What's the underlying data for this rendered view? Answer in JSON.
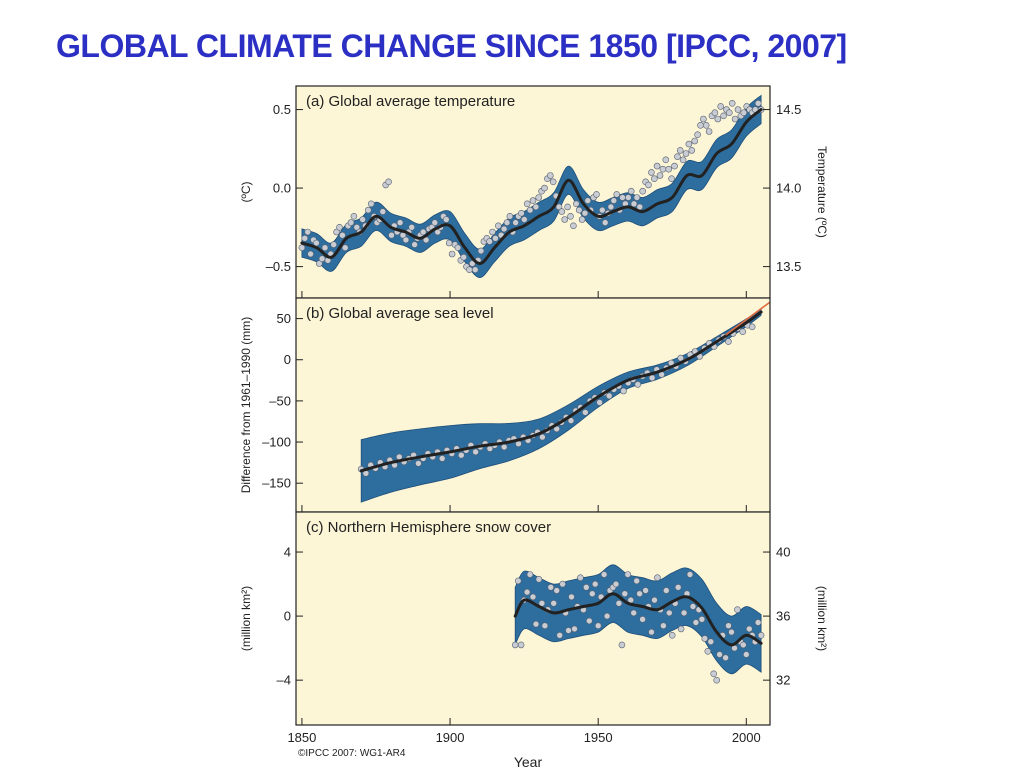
{
  "slide": {
    "title": "GLOBAL CLIMATE CHANGE SINCE 1850 [IPCC, 2007]"
  },
  "figure": {
    "credit": "©IPCC 2007: WG1-AR4",
    "xlabel": "Year",
    "xlim": [
      1848,
      2008
    ],
    "xticks": [
      1850,
      1900,
      1950,
      2000
    ],
    "colors": {
      "panel_bg": "#fcf5d6",
      "band": "#2e6e9e",
      "band_edge": "#1d4e7a",
      "line": "#222222",
      "point": "#c9ccd2",
      "point_edge": "#556070",
      "red_line": "#e06a40"
    }
  },
  "chart_data": [
    {
      "type": "line",
      "title": "(a) Global average temperature",
      "ylabel": "(ºC)",
      "ylim": [
        -0.7,
        0.65
      ],
      "yticks": [
        -0.5,
        0.0,
        0.5
      ],
      "ytick_labels": [
        "–0.5",
        "0.0",
        "0.5"
      ],
      "right_axis": {
        "label": "Temperature (ºC)",
        "ticks": [
          13.5,
          14.0,
          14.5
        ],
        "tick_labels": [
          "13.5",
          "14.0",
          "14.5"
        ],
        "offset": 14.0
      },
      "smooth": {
        "x": [
          1850,
          1855,
          1860,
          1865,
          1870,
          1875,
          1880,
          1885,
          1890,
          1895,
          1900,
          1905,
          1910,
          1915,
          1920,
          1925,
          1930,
          1935,
          1940,
          1945,
          1950,
          1955,
          1960,
          1965,
          1970,
          1975,
          1980,
          1985,
          1990,
          1995,
          2000,
          2005
        ],
        "y": [
          -0.35,
          -0.38,
          -0.44,
          -0.32,
          -0.28,
          -0.18,
          -0.25,
          -0.28,
          -0.32,
          -0.26,
          -0.24,
          -0.38,
          -0.48,
          -0.38,
          -0.28,
          -0.24,
          -0.18,
          -0.12,
          0.05,
          -0.1,
          -0.18,
          -0.15,
          -0.12,
          -0.15,
          -0.1,
          -0.06,
          0.08,
          0.08,
          0.22,
          0.28,
          0.42,
          0.5
        ]
      },
      "band_halfwidth": 0.09,
      "points": {
        "x_start": 1850,
        "x_end": 2005,
        "y": [
          -0.38,
          -0.32,
          -0.28,
          -0.42,
          -0.33,
          -0.35,
          -0.48,
          -0.45,
          -0.38,
          -0.46,
          -0.42,
          -0.36,
          -0.28,
          -0.25,
          -0.3,
          -0.38,
          -0.24,
          -0.22,
          -0.18,
          -0.25,
          -0.28,
          -0.2,
          -0.24,
          -0.14,
          -0.1,
          -0.18,
          -0.22,
          -0.2,
          -0.15,
          0.02,
          0.04,
          -0.3,
          -0.24,
          -0.28,
          -0.22,
          -0.3,
          -0.33,
          -0.28,
          -0.25,
          -0.36,
          -0.32,
          -0.3,
          -0.28,
          -0.33,
          -0.26,
          -0.25,
          -0.22,
          -0.28,
          -0.25,
          -0.18,
          -0.2,
          -0.35,
          -0.42,
          -0.36,
          -0.38,
          -0.46,
          -0.44,
          -0.5,
          -0.52,
          -0.48,
          -0.52,
          -0.46,
          -0.4,
          -0.34,
          -0.32,
          -0.34,
          -0.28,
          -0.32,
          -0.24,
          -0.3,
          -0.26,
          -0.22,
          -0.18,
          -0.28,
          -0.22,
          -0.18,
          -0.16,
          -0.2,
          -0.1,
          -0.14,
          -0.08,
          -0.12,
          -0.06,
          -0.02,
          0.0,
          0.06,
          0.08,
          0.04,
          -0.05,
          -0.12,
          -0.15,
          -0.2,
          -0.12,
          -0.18,
          -0.24,
          -0.1,
          -0.14,
          -0.2,
          -0.16,
          -0.08,
          -0.14,
          -0.06,
          -0.04,
          -0.18,
          -0.14,
          -0.22,
          -0.16,
          -0.12,
          -0.08,
          -0.04,
          -0.14,
          -0.06,
          -0.1,
          -0.06,
          -0.02,
          -0.1,
          -0.06,
          -0.12,
          -0.02,
          0.04,
          0.02,
          0.1,
          0.06,
          0.14,
          0.08,
          0.12,
          0.18,
          0.12,
          0.06,
          0.14,
          0.2,
          0.24,
          0.18,
          0.22,
          0.28,
          0.24,
          0.3,
          0.34,
          0.4,
          0.44,
          0.4,
          0.36,
          0.46,
          0.48,
          0.44,
          0.52,
          0.46,
          0.5,
          0.48,
          0.54,
          0.44,
          0.5,
          0.46,
          0.48,
          0.52,
          0.5,
          0.48,
          0.5,
          0.54,
          0.5
        ]
      }
    },
    {
      "type": "line",
      "title": "(b) Global average sea level",
      "ylabel": "Difference from 1961–1990 (mm)",
      "ylim": [
        -185,
        75
      ],
      "yticks": [
        -150,
        -100,
        -50,
        0,
        50
      ],
      "ytick_labels": [
        "–150",
        "–100",
        "–50",
        "0",
        "50"
      ],
      "smooth": {
        "x": [
          1870,
          1880,
          1890,
          1900,
          1910,
          1920,
          1930,
          1940,
          1950,
          1960,
          1970,
          1980,
          1990,
          2000,
          2005
        ],
        "y": [
          -135,
          -125,
          -118,
          -112,
          -105,
          -100,
          -90,
          -70,
          -45,
          -25,
          -15,
          0,
          22,
          45,
          58
        ]
      },
      "band_halfwidth": {
        "x": [
          1870,
          1900,
          1930,
          1960,
          1990,
          2005
        ],
        "y": [
          38,
          32,
          18,
          10,
          6,
          4
        ]
      },
      "satellite": {
        "x": [
          1993,
          2008
        ],
        "y": [
          30,
          70
        ]
      },
      "points": {
        "x_start": 1870,
        "x_end": 2002,
        "y": [
          -133,
          -138,
          -128,
          -132,
          -125,
          -130,
          -122,
          -128,
          -118,
          -124,
          -120,
          -116,
          -126,
          -120,
          -114,
          -118,
          -112,
          -120,
          -110,
          -114,
          -108,
          -116,
          -110,
          -104,
          -112,
          -106,
          -102,
          -108,
          -104,
          -100,
          -106,
          -98,
          -96,
          -102,
          -94,
          -98,
          -92,
          -88,
          -94,
          -86,
          -80,
          -84,
          -76,
          -70,
          -74,
          -62,
          -58,
          -64,
          -50,
          -46,
          -52,
          -40,
          -44,
          -36,
          -32,
          -38,
          -28,
          -24,
          -30,
          -20,
          -16,
          -22,
          -12,
          -18,
          -10,
          -4,
          -8,
          2,
          -2,
          6,
          10,
          4,
          14,
          20,
          16,
          24,
          28,
          22,
          32,
          38,
          34,
          42,
          40
        ]
      }
    },
    {
      "type": "line",
      "title": "(c) Northern Hemisphere snow cover",
      "ylabel": "(million km²)",
      "ylim": [
        -6.8,
        6.5
      ],
      "yticks": [
        -4,
        0,
        4
      ],
      "ytick_labels": [
        "–4",
        "0",
        "4"
      ],
      "right_axis": {
        "label": "(million km²)",
        "ticks": [
          32,
          36,
          40
        ],
        "tick_labels": [
          "32",
          "36",
          "40"
        ],
        "offset": 36
      },
      "smooth": {
        "x": [
          1922,
          1925,
          1930,
          1935,
          1940,
          1945,
          1950,
          1955,
          1960,
          1965,
          1970,
          1975,
          1980,
          1985,
          1990,
          1995,
          2000,
          2005
        ],
        "y": [
          0.0,
          1.0,
          0.6,
          0.2,
          0.4,
          0.6,
          0.8,
          1.4,
          0.8,
          0.6,
          0.4,
          0.9,
          1.2,
          0.5,
          -1.0,
          -1.8,
          -1.2,
          -1.7
        ]
      },
      "band_halfwidth": 1.8,
      "points": {
        "x_start": 1922,
        "x_end": 2005,
        "y": [
          -1.8,
          2.2,
          -1.8,
          1.0,
          1.5,
          2.6,
          1.2,
          -0.5,
          2.3,
          0.8,
          -0.6,
          0.4,
          1.8,
          0.8,
          1.6,
          -1.2,
          2.0,
          0.2,
          -0.9,
          1.2,
          -0.8,
          0.6,
          2.4,
          0.4,
          1.8,
          -0.3,
          1.4,
          2.0,
          -0.6,
          1.2,
          2.6,
          0.0,
          1.6,
          1.8,
          2.0,
          0.8,
          -1.8,
          1.4,
          2.6,
          1.0,
          0.2,
          2.2,
          1.4,
          -0.2,
          1.6,
          0.6,
          -1.0,
          1.0,
          2.4,
          0.4,
          -0.6,
          1.6,
          0.2,
          -1.2,
          0.8,
          1.8,
          -0.8,
          0.2,
          1.4,
          2.6,
          0.6,
          -0.4,
          0.4,
          -0.2,
          -1.4,
          -2.2,
          -1.6,
          -3.6,
          -4.0,
          -2.4,
          -1.2,
          -2.6,
          -0.6,
          -1.0,
          -2.0,
          0.4,
          -1.6,
          -1.8,
          -2.4,
          -0.8,
          -1.2,
          -1.6,
          -0.4,
          -1.2
        ]
      }
    }
  ]
}
